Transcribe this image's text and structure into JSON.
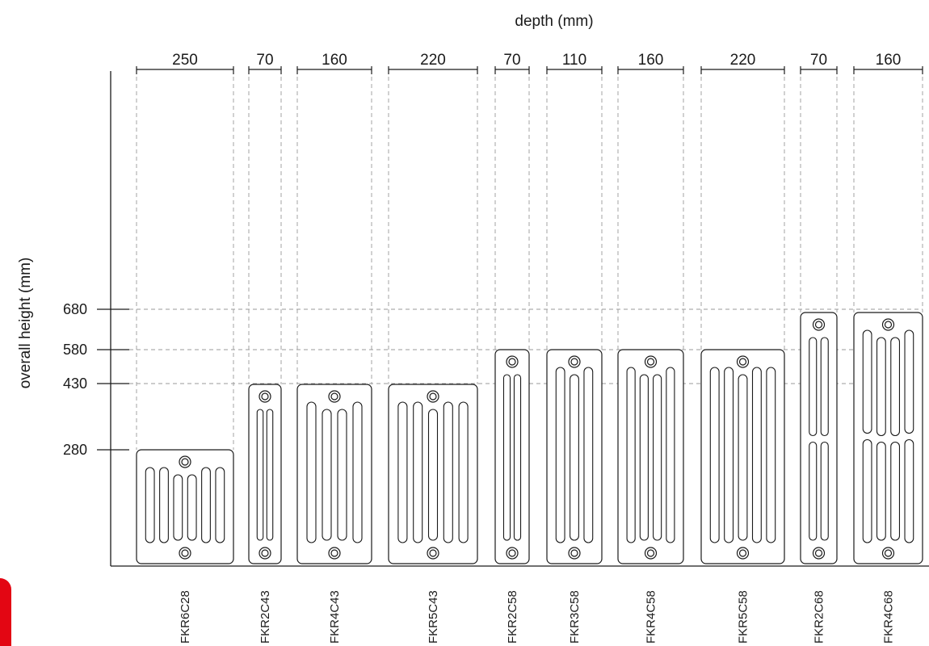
{
  "diagram": {
    "x_axis_title": "depth (mm)",
    "y_axis_title": "overall height (mm)",
    "height_ticks": [
      {
        "label": "680",
        "value": 680
      },
      {
        "label": "580",
        "value": 580
      },
      {
        "label": "430",
        "value": 430
      },
      {
        "label": "280",
        "value": 280
      }
    ],
    "models": [
      {
        "name": "FKR6C28",
        "depth": "250",
        "height": 280,
        "columns": 6
      },
      {
        "name": "FKR2C43",
        "depth": "70",
        "height": 430,
        "columns": 2
      },
      {
        "name": "FKR4C43",
        "depth": "160",
        "height": 430,
        "columns": 4
      },
      {
        "name": "FKR5C43",
        "depth": "220",
        "height": 430,
        "columns": 5
      },
      {
        "name": "FKR2C58",
        "depth": "70",
        "height": 580,
        "columns": 2
      },
      {
        "name": "FKR3C58",
        "depth": "110",
        "height": 580,
        "columns": 3
      },
      {
        "name": "FKR4C58",
        "depth": "160",
        "height": 580,
        "columns": 4
      },
      {
        "name": "FKR5C58",
        "depth": "220",
        "height": 580,
        "columns": 5
      },
      {
        "name": "FKR2C68",
        "depth": "70",
        "height": 680,
        "columns": 2
      },
      {
        "name": "FKR4C68",
        "depth": "160",
        "height": 680,
        "columns": 4
      }
    ]
  },
  "colors": {
    "accent": "#e30613",
    "line": "#1a1a1a",
    "guide": "#9a9a9a"
  }
}
